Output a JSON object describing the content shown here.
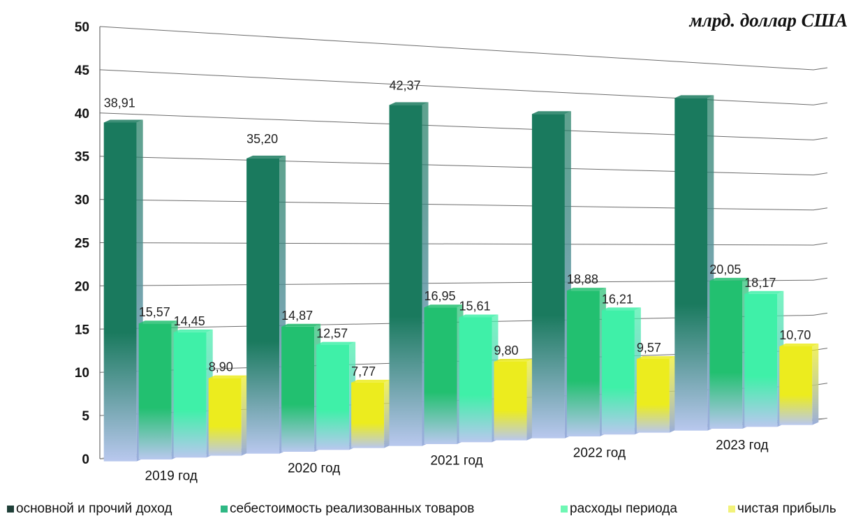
{
  "chart_data": {
    "type": "bar",
    "unit_label": "млрд. доллар США",
    "categories": [
      "2019 год",
      "2020 год",
      "2021 год",
      "2022 год",
      "2023 год"
    ],
    "series": [
      {
        "name": "основной и прочий доход",
        "values": [
          38.91,
          35.2,
          42.37,
          42.0,
          45.0
        ],
        "labels": [
          "38,91",
          "35,20",
          "42,37",
          "",
          ""
        ],
        "color": "#1a7a5e"
      },
      {
        "name": "себестоимость реализованных товаров",
        "values": [
          15.57,
          14.87,
          16.95,
          18.88,
          20.05
        ],
        "labels": [
          "15,57",
          "14,87",
          "16,95",
          "18,88",
          "20,05"
        ],
        "color": "#22c070"
      },
      {
        "name": "расходы периода",
        "values": [
          14.45,
          12.57,
          15.61,
          16.21,
          18.17
        ],
        "labels": [
          "14,45",
          "12,57",
          "15,61",
          "16,21",
          "18,17"
        ],
        "color": "#3ff0a8"
      },
      {
        "name": "чистая прибыль",
        "values": [
          8.9,
          7.77,
          9.8,
          9.57,
          10.7
        ],
        "labels": [
          "8,90",
          "7,77",
          "9,80",
          "9,57",
          "10,70"
        ],
        "color": "#ecec1e"
      }
    ],
    "ylim": [
      0,
      50
    ],
    "yticks": [
      "0",
      "5",
      "10",
      "15",
      "20",
      "25",
      "30",
      "35",
      "40",
      "45",
      "50"
    ],
    "grid": true,
    "legend_position": "bottom"
  }
}
